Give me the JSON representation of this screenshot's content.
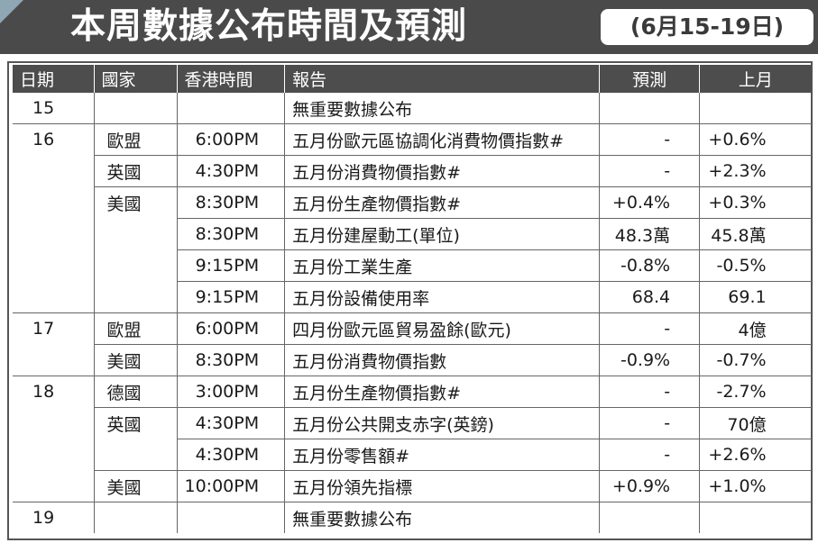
{
  "header": {
    "title": "本周數據公布時間及預測",
    "date_range": "(6月15-19日)"
  },
  "columns": [
    "日期",
    "國家",
    "香港時間",
    "報告",
    "預測",
    "上月"
  ],
  "rows": [
    {
      "day": "15",
      "country": "",
      "time": "",
      "report": "無重要數據公布",
      "forecast": "",
      "previous": ""
    },
    {
      "day": "16",
      "country": "歐盟",
      "time": "6:00PM",
      "report": "五月份歐元區協調化消費物價指數#",
      "forecast": "-",
      "previous": "+0.6%"
    },
    {
      "day": "",
      "country": "英國",
      "time": "4:30PM",
      "report": "五月份消費物價指數#",
      "forecast": "-",
      "previous": "+2.3%"
    },
    {
      "day": "",
      "country": "美國",
      "time": "8:30PM",
      "report": "五月份生產物價指數#",
      "forecast": "+0.4%",
      "previous": "+0.3%"
    },
    {
      "day": "",
      "country": "",
      "time": "8:30PM",
      "report": "五月份建屋動工(單位)",
      "forecast": "48.3萬",
      "previous": "45.8萬"
    },
    {
      "day": "",
      "country": "",
      "time": "9:15PM",
      "report": "五月份工業生產",
      "forecast": "-0.8%",
      "previous": "-0.5%"
    },
    {
      "day": "",
      "country": "",
      "time": "9:15PM",
      "report": "五月份設備使用率",
      "forecast": "68.4",
      "previous": "69.1"
    },
    {
      "day": "17",
      "country": "歐盟",
      "time": "6:00PM",
      "report": "四月份歐元區貿易盈餘(歐元)",
      "forecast": "-",
      "previous": "4億"
    },
    {
      "day": "",
      "country": "美國",
      "time": "8:30PM",
      "report": "五月份消費物價指數",
      "forecast": "-0.9%",
      "previous": "-0.7%"
    },
    {
      "day": "18",
      "country": "德國",
      "time": "3:00PM",
      "report": "五月份生產物價指數#",
      "forecast": "-",
      "previous": "-2.7%"
    },
    {
      "day": "",
      "country": "英國",
      "time": "4:30PM",
      "report": "五月份公共開支赤字(英鎊)",
      "forecast": "-",
      "previous": "70億"
    },
    {
      "day": "",
      "country": "",
      "time": "4:30PM",
      "report": "五月份零售額#",
      "forecast": "-",
      "previous": "+2.6%"
    },
    {
      "day": "",
      "country": "美國",
      "time": "10:00PM",
      "report": "五月份領先指標",
      "forecast": "+0.9%",
      "previous": "+1.0%"
    },
    {
      "day": "19",
      "country": "",
      "time": "",
      "report": "無重要數據公布",
      "forecast": "",
      "previous": ""
    }
  ],
  "colors": {
    "banner": "#4a4a4a",
    "header_row": "#4d4d4d",
    "accent_corner": "#8fa6b3"
  }
}
